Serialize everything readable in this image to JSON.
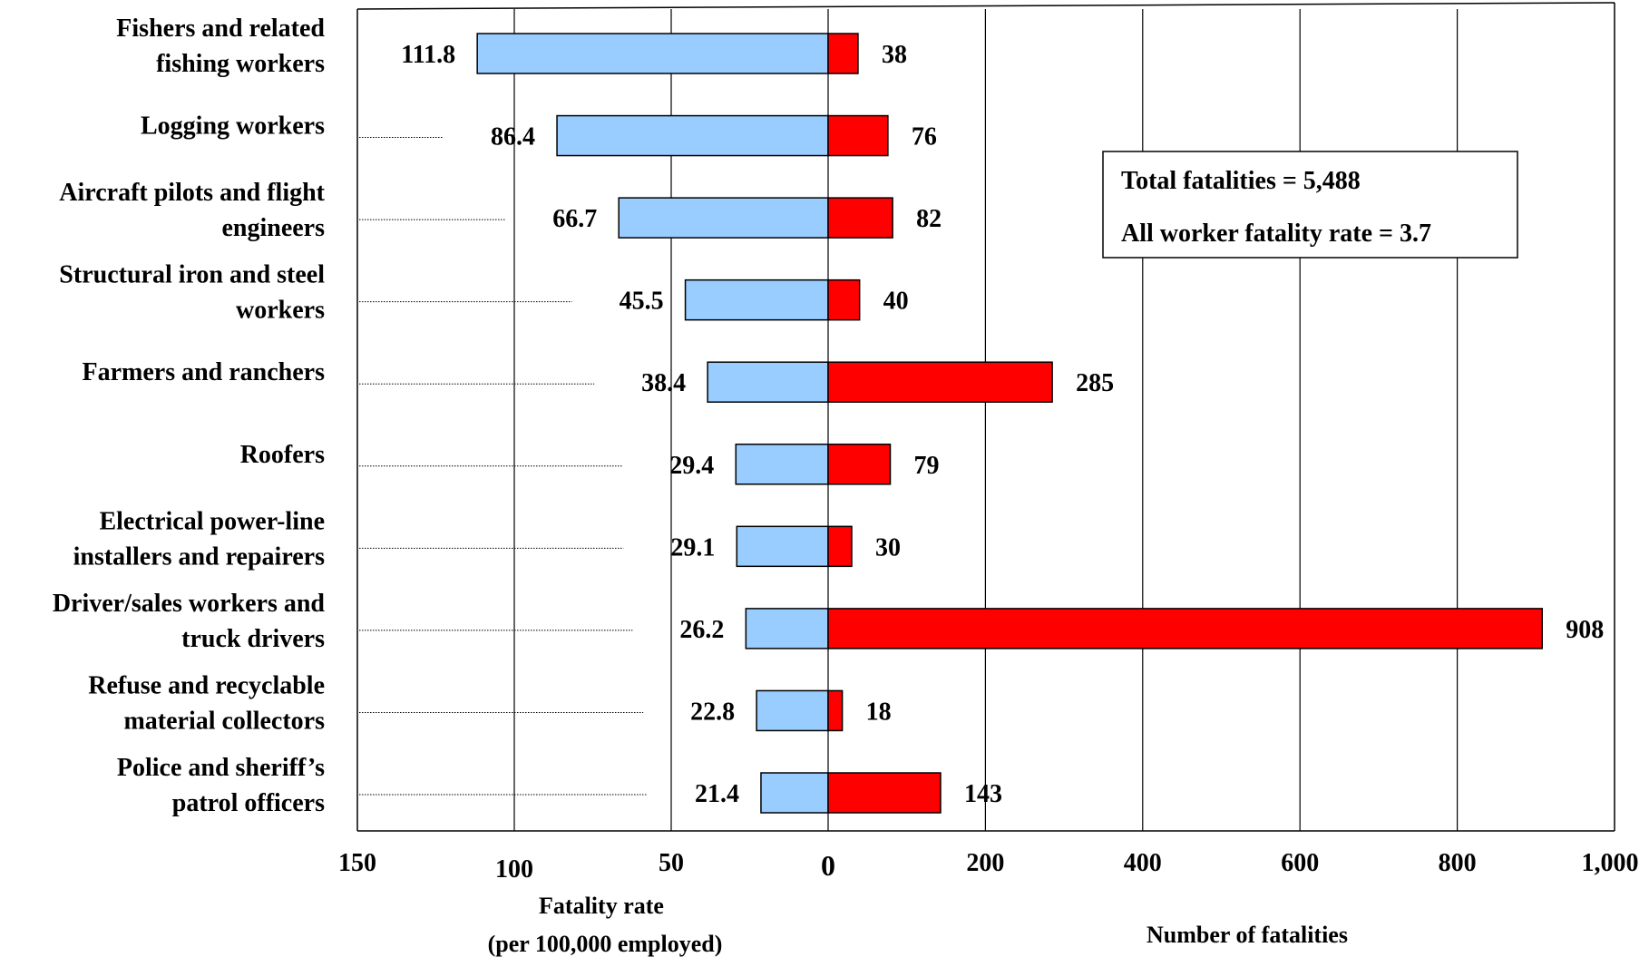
{
  "chart_data": {
    "type": "bar",
    "categories": [
      [
        "Fishers and related",
        "fishing workers"
      ],
      [
        "Logging workers"
      ],
      [
        "Aircraft pilots and flight",
        "engineers"
      ],
      [
        "Structural iron and steel",
        "workers"
      ],
      [
        "Farmers and ranchers"
      ],
      [
        "Roofers"
      ],
      [
        "Electrical power-line",
        "installers and repairers"
      ],
      [
        "Driver/sales workers and",
        "truck drivers"
      ],
      [
        "Refuse and recyclable",
        "material collectors"
      ],
      [
        "Police and sheriff’s",
        "patrol officers"
      ]
    ],
    "series": [
      {
        "values": [
          111.8,
          86.4,
          66.7,
          45.5,
          38.4,
          29.4,
          29.1,
          26.2,
          22.8,
          21.4
        ],
        "labels": [
          "111.8",
          "86.4",
          "66.7",
          "45.5",
          "38.4",
          "29.4",
          "29.1",
          "26.2",
          "22.8",
          "21.4"
        ],
        "color": "#99ccff"
      },
      {
        "values": [
          38,
          76,
          82,
          40,
          285,
          79,
          30,
          908,
          18,
          143
        ],
        "labels": [
          "38",
          "76",
          "82",
          "40",
          "285",
          "79",
          "30",
          "908",
          "18",
          "143"
        ],
        "color": "#ff0000"
      }
    ],
    "left_axis": {
      "range": [
        150,
        0
      ],
      "ticks": [
        150,
        100,
        50,
        0
      ],
      "tick_labels": [
        "150",
        "100",
        "50",
        "0"
      ],
      "label": [
        "Fatality rate",
        "(per 100,000 employed)"
      ]
    },
    "right_axis": {
      "range": [
        0,
        1000
      ],
      "ticks": [
        200,
        400,
        600,
        800,
        1000
      ],
      "tick_labels": [
        "200",
        "400",
        "600",
        "800",
        "1,000"
      ],
      "label": "Number of fatalities"
    },
    "grid": true,
    "annotation": [
      "Total fatalities = 5,488",
      "All worker fatality rate = 3.7"
    ]
  }
}
